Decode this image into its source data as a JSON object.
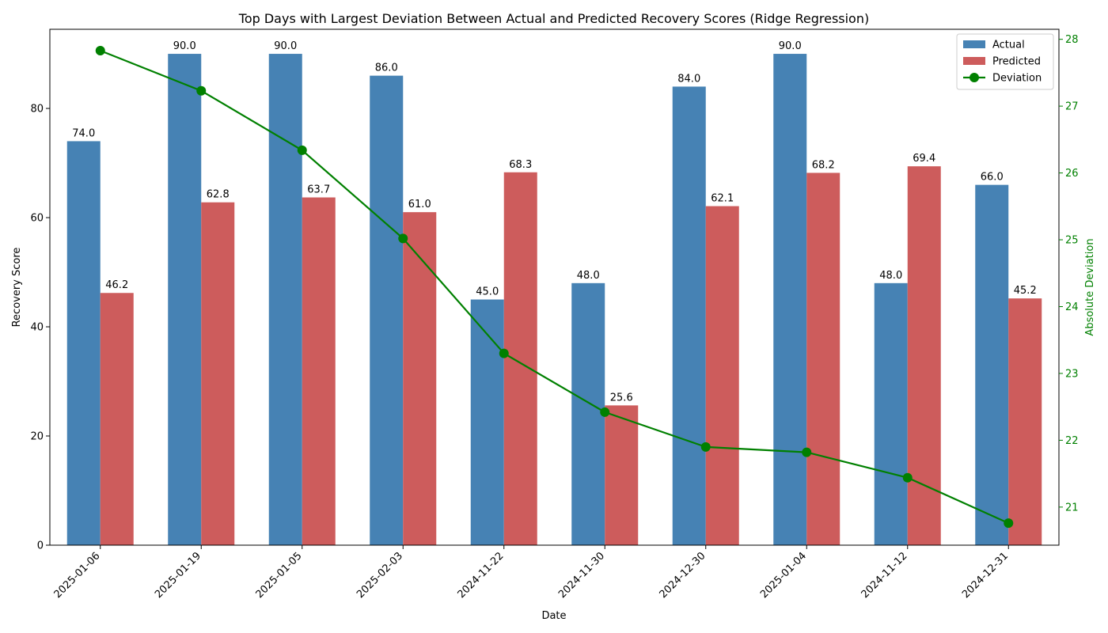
{
  "chart_data": {
    "type": "bar",
    "title": "Top Days with Largest Deviation Between Actual and Predicted Recovery Scores (Ridge Regression)",
    "xlabel": "Date",
    "ylabel": "Recovery Score",
    "y2label": "Absolute Deviation",
    "ylim": [
      0,
      94.5
    ],
    "y2lim": [
      20.43,
      28.15
    ],
    "yticks": [
      0,
      20,
      40,
      60,
      80
    ],
    "y2ticks": [
      21,
      22,
      23,
      24,
      25,
      26,
      27,
      28
    ],
    "categories": [
      "2025-01-06",
      "2025-01-19",
      "2025-01-05",
      "2025-02-03",
      "2024-11-22",
      "2024-11-30",
      "2024-12-30",
      "2025-01-04",
      "2024-11-12",
      "2024-12-31"
    ],
    "series": [
      {
        "name": "Actual",
        "type": "bar",
        "axis": "left",
        "color": "#4682b4",
        "values": [
          74.0,
          90.0,
          90.0,
          86.0,
          45.0,
          48.0,
          84.0,
          90.0,
          48.0,
          66.0
        ],
        "labels": [
          "74.0",
          "90.0",
          "90.0",
          "86.0",
          "45.0",
          "48.0",
          "84.0",
          "90.0",
          "48.0",
          "66.0"
        ]
      },
      {
        "name": "Predicted",
        "type": "bar",
        "axis": "left",
        "color": "#cd5c5c",
        "values": [
          46.2,
          62.8,
          63.7,
          61.0,
          68.3,
          25.6,
          62.1,
          68.2,
          69.4,
          45.2
        ],
        "labels": [
          "46.2",
          "62.8",
          "63.7",
          "61.0",
          "68.3",
          "25.6",
          "62.1",
          "68.2",
          "69.4",
          "45.2"
        ]
      },
      {
        "name": "Deviation",
        "type": "line",
        "axis": "right",
        "color": "#008000",
        "values": [
          27.83,
          27.23,
          26.34,
          25.02,
          23.3,
          22.42,
          21.9,
          21.82,
          21.44,
          20.76
        ]
      }
    ],
    "legend": "top-right",
    "grid": false
  }
}
